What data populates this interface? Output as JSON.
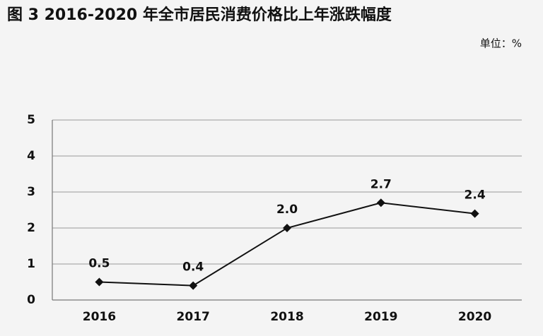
{
  "chart_data": {
    "type": "line",
    "title": "图 3  2016-2020 年全市居民消费价格比上年涨跌幅度",
    "unit": "单位：%",
    "categories": [
      "2016",
      "2017",
      "2018",
      "2019",
      "2020"
    ],
    "values": [
      0.5,
      0.4,
      2.0,
      2.7,
      2.4
    ],
    "value_labels": [
      "0.5",
      "0.4",
      "2.0",
      "2.7",
      "2.4"
    ],
    "color": "#111111",
    "ylim": [
      0,
      5
    ],
    "yticks": [
      0,
      1,
      2,
      3,
      4,
      5
    ],
    "grid": true
  }
}
